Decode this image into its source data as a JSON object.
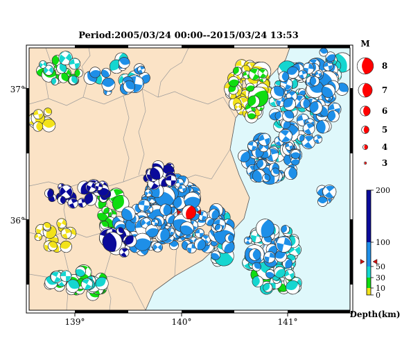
{
  "map": {
    "title": "Period:2005/03/24 00:00--2015/03/24 13:53",
    "lon_ticks": [
      "139°",
      "140°",
      "141°"
    ],
    "lat_ticks": [
      "37°",
      "36°"
    ],
    "lon_range": [
      138.55,
      141.6
    ],
    "lat_range": [
      35.4,
      37.3
    ],
    "colors": {
      "land": "#fbe3c6",
      "sea": "#dff8fb",
      "border": "#9a9a9a",
      "coast": "#555555",
      "frame": "#000000"
    }
  },
  "magnitude_scale": {
    "title": "M",
    "items": [
      {
        "label": "8",
        "m": 8
      },
      {
        "label": "7",
        "m": 7
      },
      {
        "label": "6",
        "m": 6
      },
      {
        "label": "5",
        "m": 5
      },
      {
        "label": "4",
        "m": 4
      },
      {
        "label": "3",
        "m": 3
      }
    ],
    "color": "#ff0000"
  },
  "depth_scale": {
    "title": "Depth(km)",
    "ticks": [
      "200",
      "100",
      "50",
      "30",
      "10",
      "0"
    ],
    "bands": [
      {
        "from": 0,
        "to": 10,
        "color": "#f2e21a"
      },
      {
        "from": 10,
        "to": 30,
        "color": "#10dd10"
      },
      {
        "from": 30,
        "to": 50,
        "color": "#15d6d0"
      },
      {
        "from": 50,
        "to": 100,
        "color": "#1e8fe8"
      },
      {
        "from": 100,
        "to": 200,
        "color": "#0a0a9a"
      }
    ],
    "marker_depth": 60
  },
  "highlight_event": {
    "lon": 140.07,
    "lat": 36.11,
    "m": 5.5,
    "color": "#ff0000"
  }
}
